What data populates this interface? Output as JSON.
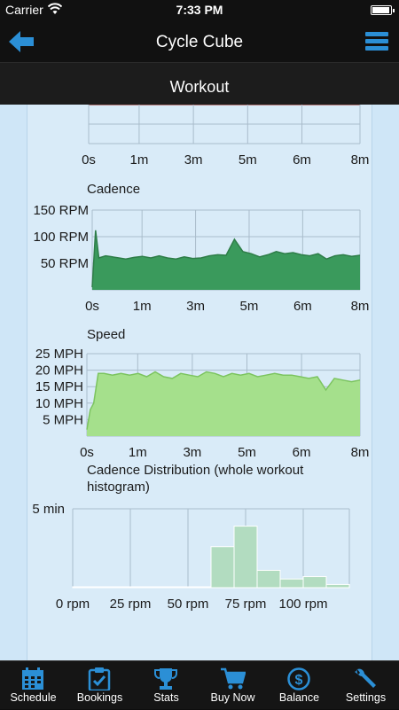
{
  "status": {
    "carrier": "Carrier",
    "time": "7:33 PM"
  },
  "nav": {
    "title": "Cycle Cube"
  },
  "subheader": {
    "title": "Workout"
  },
  "colors": {
    "accent": "#2b8fd6",
    "cadence_fill": "#3a9a5c",
    "speed_fill": "#a5e08c",
    "hist_fill": "#b2dcc0"
  },
  "top_chart": {
    "xticks": [
      "0s",
      "1m",
      "3m",
      "5m",
      "6m",
      "8m"
    ]
  },
  "charts": {
    "cadence": {
      "type": "area",
      "title": "Cadence",
      "yticks": [
        "150 RPM",
        "100 RPM",
        "50 RPM"
      ],
      "ytick_values": [
        150,
        100,
        50
      ],
      "ylim": [
        0,
        150
      ],
      "xticks": [
        "0s",
        "1m",
        "3m",
        "5m",
        "6m",
        "8m"
      ],
      "x_seconds": [
        0,
        6,
        12,
        24,
        36,
        48,
        60,
        75,
        90,
        105,
        120,
        135,
        150,
        165,
        180,
        195,
        210,
        225,
        240,
        255,
        270,
        285,
        300,
        315,
        330,
        345,
        360,
        375,
        390,
        405,
        420,
        435,
        450,
        465,
        480
      ],
      "values": [
        5,
        112,
        60,
        64,
        62,
        60,
        58,
        61,
        63,
        60,
        64,
        60,
        58,
        62,
        59,
        60,
        64,
        66,
        65,
        95,
        72,
        68,
        62,
        66,
        72,
        68,
        70,
        66,
        64,
        68,
        58,
        64,
        66,
        63,
        65
      ]
    },
    "speed": {
      "type": "area",
      "title": "Speed",
      "yticks": [
        "25 MPH",
        "20 MPH",
        "15 MPH",
        "10 MPH",
        "5 MPH"
      ],
      "ytick_values": [
        25,
        20,
        15,
        10,
        5
      ],
      "ylim": [
        0,
        25
      ],
      "xticks": [
        "0s",
        "1m",
        "3m",
        "5m",
        "6m",
        "8m"
      ],
      "x_seconds": [
        0,
        6,
        12,
        20,
        30,
        45,
        60,
        75,
        90,
        105,
        120,
        135,
        150,
        165,
        180,
        195,
        210,
        225,
        240,
        255,
        270,
        285,
        300,
        315,
        330,
        345,
        360,
        375,
        390,
        405,
        420,
        435,
        450,
        465,
        480
      ],
      "values": [
        2,
        8,
        10,
        19,
        19,
        18.5,
        19,
        18.5,
        19,
        18,
        19.5,
        18,
        17.5,
        19,
        18.5,
        18,
        19.5,
        19,
        18,
        19,
        18.5,
        19,
        18,
        18.5,
        19,
        18.5,
        18.5,
        18,
        17.5,
        18,
        14,
        17.5,
        17,
        16.5,
        17
      ]
    },
    "distribution": {
      "type": "bar",
      "title": "Cadence Distribution (whole workout histogram)",
      "yticks": [
        "5 min"
      ],
      "ytick_values": [
        5
      ],
      "ylim": [
        0,
        5
      ],
      "xticks": [
        "0 rpm",
        "25 rpm",
        "50 rpm",
        "75 rpm",
        "100 rpm"
      ],
      "bin_width": 10,
      "bin_starts": [
        0,
        10,
        20,
        30,
        40,
        50,
        60,
        70,
        80,
        90,
        100,
        110
      ],
      "values": [
        0.05,
        0.05,
        0.05,
        0.05,
        0.05,
        0.05,
        2.6,
        3.9,
        1.1,
        0.55,
        0.7,
        0.2
      ]
    }
  },
  "tabs": [
    {
      "label": "Schedule",
      "icon": "calendar-icon"
    },
    {
      "label": "Bookings",
      "icon": "clipboard-check-icon"
    },
    {
      "label": "Stats",
      "icon": "trophy-icon"
    },
    {
      "label": "Buy Now",
      "icon": "cart-icon"
    },
    {
      "label": "Balance",
      "icon": "dollar-icon"
    },
    {
      "label": "Settings",
      "icon": "wrench-icon"
    }
  ]
}
